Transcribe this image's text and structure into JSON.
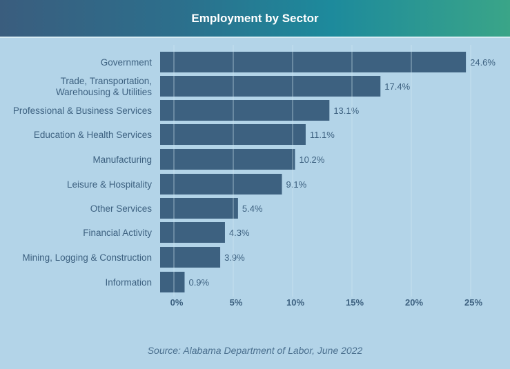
{
  "chart_data": {
    "type": "bar",
    "orientation": "horizontal",
    "title": "Employment by Sector",
    "categories": [
      "Government",
      "Trade, Transportation,\nWarehousing & Utilities",
      "Professional & Business Services",
      "Education & Health Services",
      "Manufacturing",
      "Leisure & Hospitality",
      "Other Services",
      "Financial Activity",
      "Mining, Logging & Construction",
      "Information"
    ],
    "values": [
      24.6,
      17.4,
      13.1,
      11.1,
      10.2,
      9.1,
      5.4,
      4.3,
      3.9,
      0.9
    ],
    "data_labels": [
      "24.6%",
      "17.4%",
      "13.1%",
      "11.1%",
      "10.2%",
      "9.1%",
      "5.4%",
      "4.3%",
      "3.9%",
      "0.9%"
    ],
    "xticks": [
      "0%",
      "5%",
      "10%",
      "15%",
      "20%",
      "25%"
    ],
    "xtick_values": [
      0,
      5,
      10,
      15,
      20,
      25
    ],
    "xlim": [
      0,
      25
    ],
    "xlabel": "",
    "ylabel": "",
    "grid": true,
    "source": "Source: Alabama Department of Labor, June 2022",
    "colors": {
      "bar": "#3d6180",
      "text": "#3d6180",
      "background": "#b3d4e8"
    }
  }
}
